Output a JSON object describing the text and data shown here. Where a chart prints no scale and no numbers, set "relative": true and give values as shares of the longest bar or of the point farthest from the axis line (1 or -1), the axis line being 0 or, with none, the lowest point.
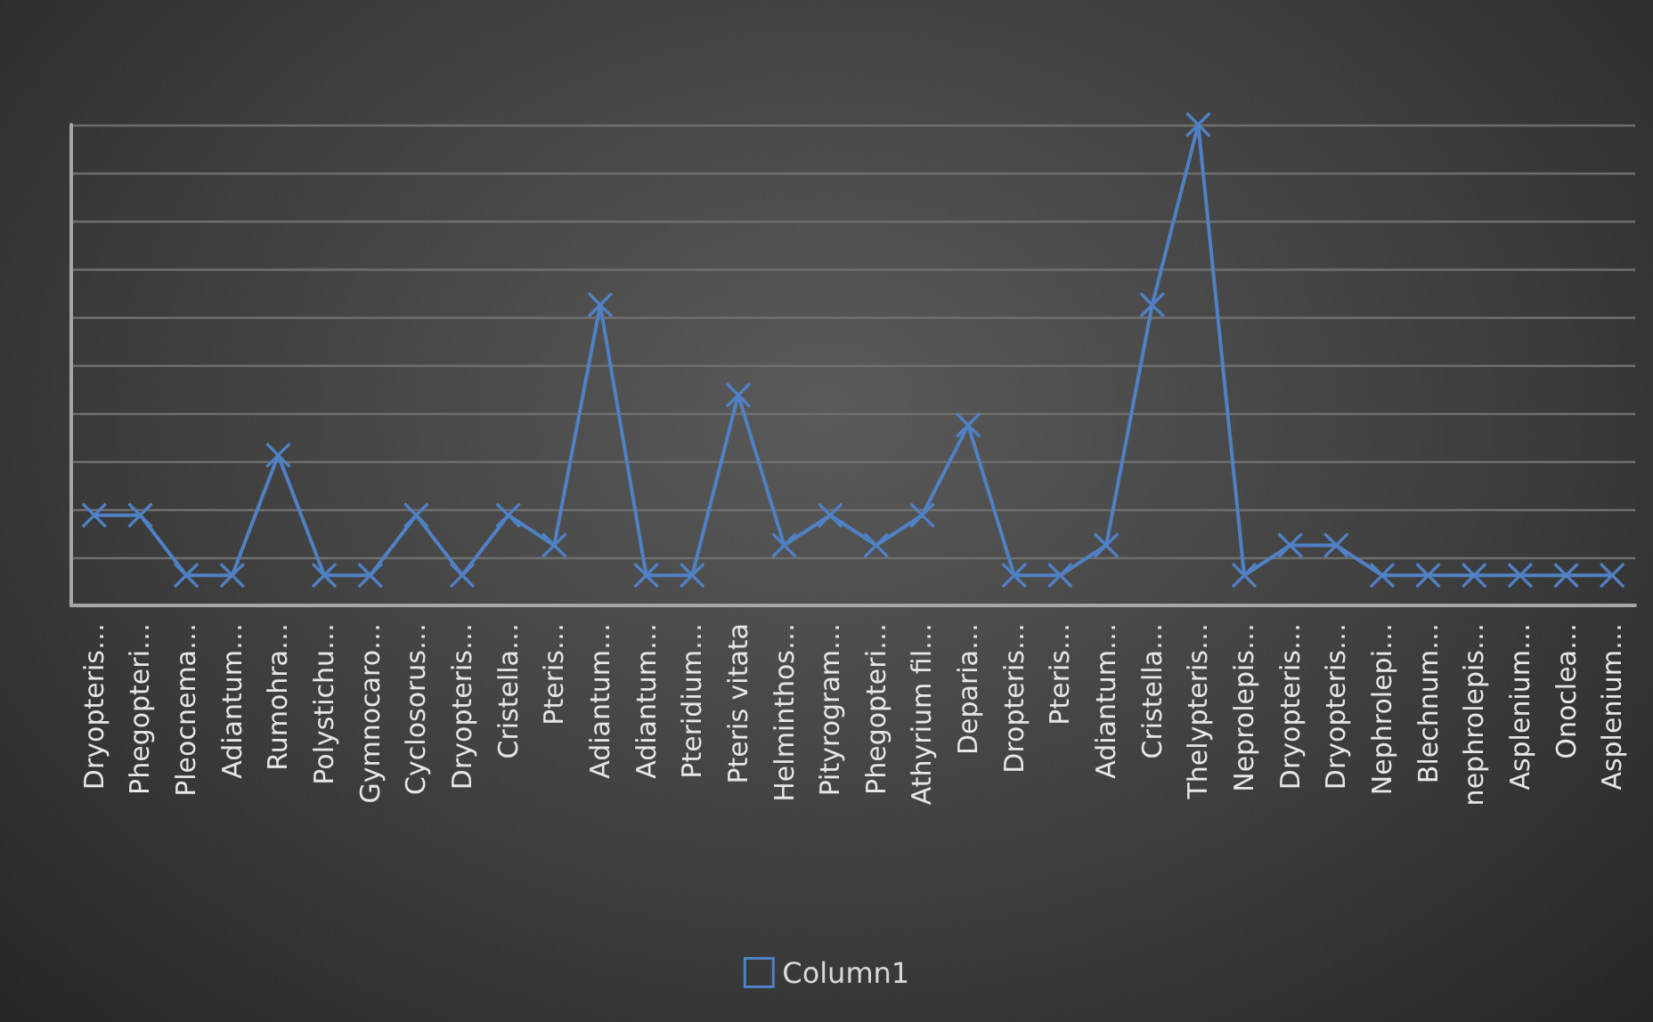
{
  "chart_data": {
    "type": "line",
    "relative": true,
    "categories": [
      "Dryopteris…",
      "Phegopteri…",
      "Pleocnema…",
      "Adiantum…",
      "Rumohra…",
      "Polystichu…",
      "Gymnocaro…",
      "Cyclosorus…",
      "Dryopteris…",
      "Cristella…",
      "Pteris…",
      "Adiantum…",
      "Adiantum…",
      "Pteridium…",
      "Pteris vitata",
      "Helminthos…",
      "Pityrogram…",
      "Phegopteri…",
      "Athyrium fil…",
      "Deparia…",
      "Dropteris…",
      "Pteris…",
      "Adiantum…",
      "Cristella…",
      "Thelypteris…",
      "Neprolepis…",
      "Dryopteris…",
      "Dryopteris…",
      "Nephrolepi…",
      "Blechnum…",
      "nephrolepis…",
      "Asplenium…",
      "Onoclea…",
      "Asplenium…"
    ],
    "series": [
      {
        "name": "Column1",
        "color": "#4f81c4",
        "values": [
          0.1875,
          0.1875,
          0.0625,
          0.0625,
          0.3125,
          0.0625,
          0.0625,
          0.1875,
          0.0625,
          0.1875,
          0.125,
          0.625,
          0.0625,
          0.0625,
          0.4375,
          0.125,
          0.1875,
          0.125,
          0.1875,
          0.375,
          0.0625,
          0.0625,
          0.125,
          0.625,
          1,
          0.0625,
          0.125,
          0.125,
          0.0625,
          0.0625,
          0.0625,
          0.0625,
          0.0625,
          0.0625
        ]
      }
    ],
    "grid": "y",
    "legend": "bottom",
    "marker": "cross",
    "line_style": "solid"
  }
}
